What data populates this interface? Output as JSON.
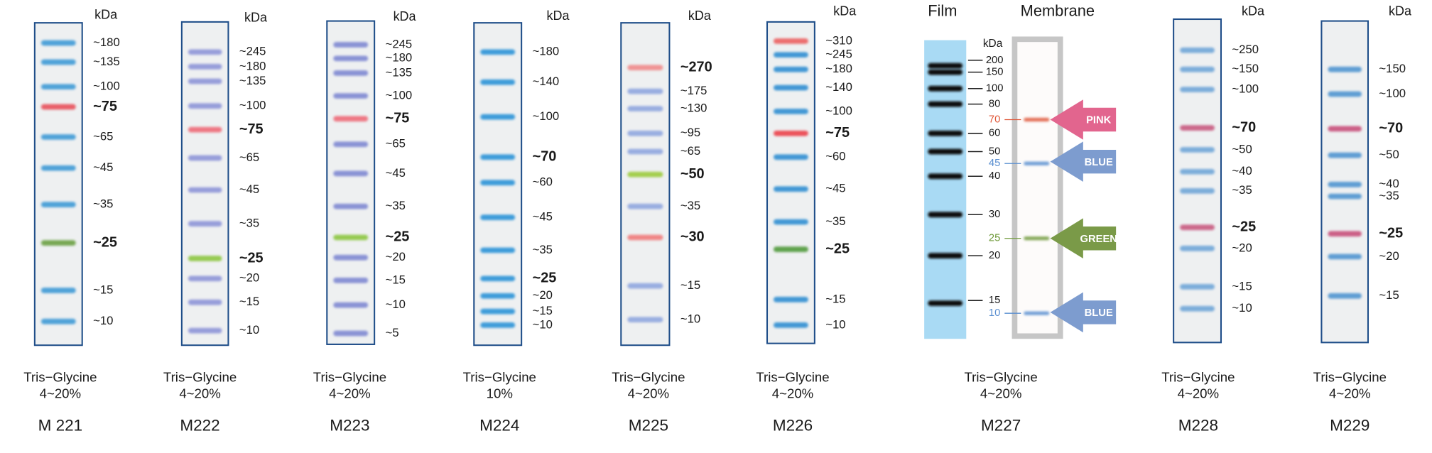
{
  "ladders": [
    {
      "name": "M 221",
      "buffer": "Tris−Glycine",
      "gel": "4~20%",
      "unit": "kDa",
      "band_color": "#3d9ad6",
      "bands": [
        {
          "label": "~180"
        },
        {
          "label": "~135"
        },
        {
          "label": "~100"
        },
        {
          "label": "~75",
          "bold": true,
          "color": "#e8505a"
        },
        {
          "label": "~65"
        },
        {
          "label": "~45"
        },
        {
          "label": "~35"
        },
        {
          "label": "~25",
          "bold": true,
          "color": "#6aa043"
        },
        {
          "label": "~15"
        },
        {
          "label": "~10"
        }
      ]
    },
    {
      "name": "M222",
      "buffer": "Tris−Glycine",
      "gel": "4~20%",
      "unit": "kDa",
      "band_color": "#8d95d8",
      "bands": [
        {
          "label": "~245"
        },
        {
          "label": "~180"
        },
        {
          "label": "~135"
        },
        {
          "label": "~100"
        },
        {
          "label": "~75",
          "bold": true,
          "color": "#ee6a78"
        },
        {
          "label": "~65"
        },
        {
          "label": "~45"
        },
        {
          "label": "~35"
        },
        {
          "label": "~25",
          "bold": true,
          "color": "#8cc63f"
        },
        {
          "label": "~20"
        },
        {
          "label": "~15"
        },
        {
          "label": "~10"
        }
      ]
    },
    {
      "name": "M223",
      "buffer": "Tris−Glycine",
      "gel": "4~20%",
      "unit": "kDa",
      "band_color": "#7f88d2",
      "bands": [
        {
          "label": "~245"
        },
        {
          "label": "~180"
        },
        {
          "label": "~135"
        },
        {
          "label": "~100"
        },
        {
          "label": "~75",
          "bold": true,
          "color": "#ee6a78"
        },
        {
          "label": "~65"
        },
        {
          "label": "~45"
        },
        {
          "label": "~35"
        },
        {
          "label": "~25",
          "bold": true,
          "color": "#8cc63f"
        },
        {
          "label": "~20"
        },
        {
          "label": "~15"
        },
        {
          "label": "~10"
        },
        {
          "label": "~5"
        }
      ]
    },
    {
      "name": "M224",
      "buffer": "Tris−Glycine",
      "gel": "10%",
      "unit": "kDa",
      "band_color": "#2c93d8",
      "bands": [
        {
          "label": "~180"
        },
        {
          "label": "~140"
        },
        {
          "label": "~100"
        },
        {
          "label": "~70",
          "bold": true
        },
        {
          "label": "~60"
        },
        {
          "label": "~45"
        },
        {
          "label": "~35"
        },
        {
          "label": "~25",
          "bold": true
        },
        {
          "label": "~20"
        },
        {
          "label": "~15"
        },
        {
          "label": "~10"
        }
      ]
    },
    {
      "name": "M225",
      "buffer": "Tris−Glycine",
      "gel": "4~20%",
      "unit": "kDa",
      "band_color": "#8fa6df",
      "bands": [
        {
          "label": "~270",
          "bold": true,
          "color": "#f08a8a"
        },
        {
          "label": "~175"
        },
        {
          "label": "~130"
        },
        {
          "label": "~95"
        },
        {
          "label": "~65"
        },
        {
          "label": "~50",
          "bold": true,
          "color": "#9ccb3b"
        },
        {
          "label": "~35"
        },
        {
          "label": "~30",
          "bold": true,
          "color": "#f07a7a"
        },
        {
          "label": "~15"
        },
        {
          "label": "~10"
        }
      ]
    },
    {
      "name": "M226",
      "buffer": "Tris−Glycine",
      "gel": "4~20%",
      "unit": "kDa",
      "band_color": "#2f8ed2",
      "bands": [
        {
          "label": "~310",
          "color": "#ec6060"
        },
        {
          "label": "~245"
        },
        {
          "label": "~180"
        },
        {
          "label": "~140"
        },
        {
          "label": "~100"
        },
        {
          "label": "~75",
          "bold": true,
          "color": "#ec3f4a"
        },
        {
          "label": "~60"
        },
        {
          "label": "~45"
        },
        {
          "label": "~35"
        },
        {
          "label": "~25",
          "bold": true,
          "color": "#4f9a3b"
        },
        {
          "label": "~15"
        },
        {
          "label": "~10"
        }
      ]
    },
    {
      "name": "M227",
      "buffer": "Tris−Glycine",
      "gel": "4~20%",
      "unit": "kDa",
      "film_label": "Film",
      "membrane_label": "Membrane",
      "markers": [
        {
          "label": "200"
        },
        {
          "label": "150"
        },
        {
          "label": "100"
        },
        {
          "label": "80"
        },
        {
          "label": "70",
          "color": "#e0583a"
        },
        {
          "label": "60"
        },
        {
          "label": "50"
        },
        {
          "label": "45",
          "color": "#5a8fd0"
        },
        {
          "label": "40"
        },
        {
          "label": "30"
        },
        {
          "label": "25",
          "color": "#6f9a3a"
        },
        {
          "label": "20"
        },
        {
          "label": "15"
        },
        {
          "label": "10",
          "color": "#5a8fd0"
        }
      ],
      "arrows": [
        {
          "label": "PINK",
          "color": "#e2658e"
        },
        {
          "label": "BLUE",
          "color": "#7d9ccf"
        },
        {
          "label": "GREEN",
          "color": "#7a9a48"
        },
        {
          "label": "BLUE",
          "color": "#7d9ccf"
        }
      ]
    },
    {
      "name": "M228",
      "buffer": "Tris−Glycine",
      "gel": "4~20%",
      "unit": "kDa",
      "band_color": "#6fa6d8",
      "bands": [
        {
          "label": "~250"
        },
        {
          "label": "~150"
        },
        {
          "label": "~100"
        },
        {
          "label": "~70",
          "bold": true,
          "color": "#c85a80"
        },
        {
          "label": "~50"
        },
        {
          "label": "~40"
        },
        {
          "label": "~35"
        },
        {
          "label": "~25",
          "bold": true,
          "color": "#c85a80"
        },
        {
          "label": "~20"
        },
        {
          "label": "~15"
        },
        {
          "label": "~10"
        }
      ]
    },
    {
      "name": "M229",
      "buffer": "Tris−Glycine",
      "gel": "4~20%",
      "unit": "kDa",
      "band_color": "#4f95d0",
      "bands": [
        {
          "label": "~150"
        },
        {
          "label": "~100"
        },
        {
          "label": "~70",
          "bold": true,
          "color": "#c8507a"
        },
        {
          "label": "~50"
        },
        {
          "label": "~40"
        },
        {
          "label": "~35"
        },
        {
          "label": "~25",
          "bold": true,
          "color": "#c8507a"
        },
        {
          "label": "~20"
        },
        {
          "label": "~15"
        }
      ]
    }
  ]
}
